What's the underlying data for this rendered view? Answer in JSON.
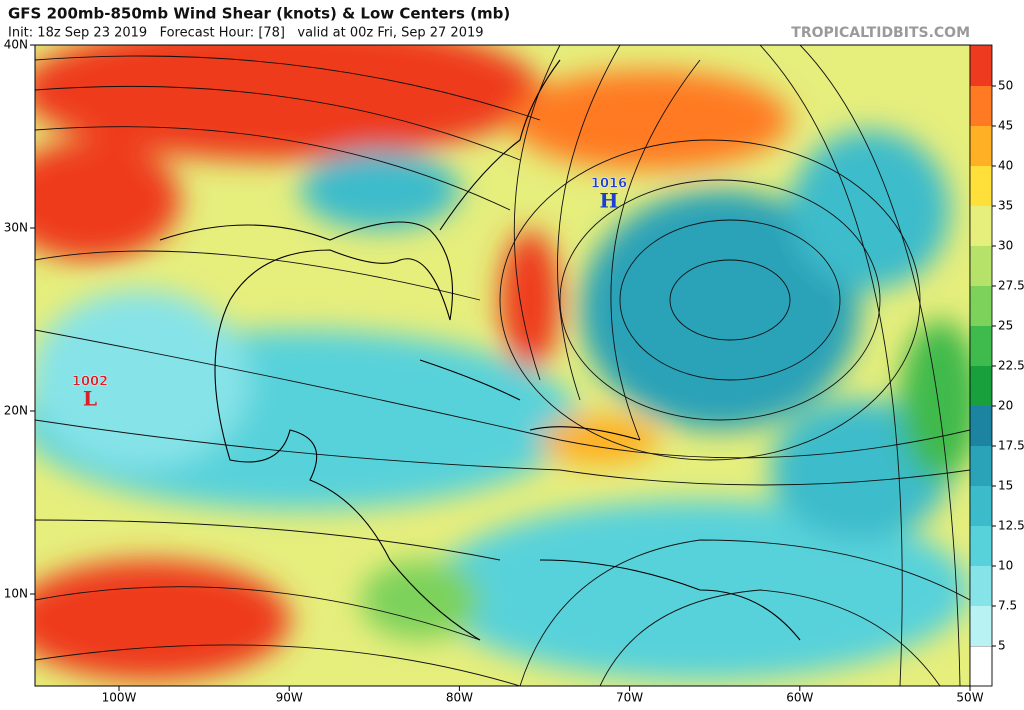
{
  "header": {
    "title": "GFS 200mb-850mb Wind Shear (knots) & Low Centers (mb)",
    "subtitle": "Init: 18z Sep 23 2019   Forecast Hour: [78]   valid at 00z Fri, Sep 27 2019",
    "site": "TROPICALTIDBITS.COM"
  },
  "map": {
    "lat_labels": [
      "40N",
      "30N",
      "20N",
      "10N"
    ],
    "lon_labels": [
      "100W",
      "90W",
      "80W",
      "70W",
      "60W",
      "50W"
    ],
    "centers": [
      {
        "pressure": "1016",
        "symbol": "H",
        "color": "#1c3fd0"
      },
      {
        "pressure": "1002",
        "symbol": "L",
        "color": "#d8202a"
      }
    ]
  },
  "colorbar": {
    "levels": [
      5,
      7.5,
      10,
      12.5,
      15,
      17.5,
      20,
      22.5,
      25,
      27.5,
      30,
      35,
      40,
      45,
      50
    ],
    "colors": [
      "#b8f2f2",
      "#86e3e8",
      "#58d2da",
      "#3cbccb",
      "#2aa2b8",
      "#1c84a0",
      "#17a03c",
      "#3fba4c",
      "#7dd25c",
      "#b6e26a",
      "#e6ee7c",
      "#ffe03a",
      "#ffb024",
      "#ff7a22",
      "#ee3a1e"
    ],
    "below_color": "#ffffff"
  }
}
